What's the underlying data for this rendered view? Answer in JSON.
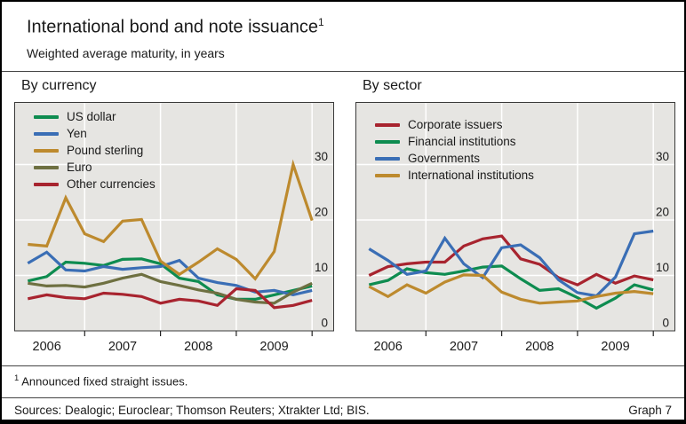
{
  "header": {
    "title": "International bond and note issuance",
    "title_superscript": "1",
    "subtitle": "Weighted average maturity, in years"
  },
  "footer": {
    "footnote_superscript": "1",
    "footnote": "Announced fixed straight issues.",
    "sources": "Sources: Dealogic; Euroclear; Thomson Reuters; Xtrakter Ltd; BIS.",
    "graph_label": "Graph 7"
  },
  "style": {
    "plot_bg": "#e6e5e2",
    "gridline_color": "#ffffff",
    "plot_border_color": "#3a3a3a",
    "text_color": "#1a1a1a"
  },
  "chart_data": [
    {
      "panel": "by-currency",
      "type": "line",
      "title": "By currency",
      "x_unit": "quarterly",
      "x_quarters": [
        "2006 Q1",
        "2006 Q2",
        "2006 Q3",
        "2006 Q4",
        "2007 Q1",
        "2007 Q2",
        "2007 Q3",
        "2007 Q4",
        "2008 Q1",
        "2008 Q2",
        "2008 Q3",
        "2008 Q4",
        "2009 Q1",
        "2009 Q2",
        "2009 Q3",
        "2009 Q4"
      ],
      "year_labels": [
        "2006",
        "2007",
        "2008",
        "2009"
      ],
      "y_ticks": [
        0,
        10,
        20,
        30
      ],
      "ylim": [
        0,
        33
      ],
      "ylabel": "years",
      "grid": true,
      "legend_position": "top-left",
      "series": [
        {
          "name": "US dollar",
          "color": "#0e8c50",
          "values": [
            9.0,
            9.8,
            12.4,
            12.2,
            11.8,
            12.9,
            13.0,
            12.1,
            9.5,
            8.9,
            6.5,
            5.7,
            5.7,
            6.5,
            7.3,
            8.1
          ]
        },
        {
          "name": "Yen",
          "color": "#3a6eb5",
          "values": [
            12.2,
            14.2,
            11.0,
            10.8,
            11.6,
            11.1,
            11.4,
            11.6,
            12.7,
            9.5,
            8.7,
            8.2,
            7.0,
            7.3,
            6.5,
            7.3
          ]
        },
        {
          "name": "Pound sterling",
          "color": "#bd8a2e",
          "values": [
            15.6,
            15.3,
            24.0,
            17.5,
            16.1,
            19.8,
            20.1,
            12.6,
            10.2,
            12.4,
            14.8,
            12.9,
            9.4,
            14.3,
            30.0,
            19.9
          ]
        },
        {
          "name": "Euro",
          "color": "#6e7041",
          "values": [
            8.6,
            8.1,
            8.2,
            7.9,
            8.6,
            9.5,
            10.2,
            8.9,
            8.2,
            7.4,
            6.8,
            5.7,
            5.2,
            5.0,
            7.0,
            8.6
          ]
        },
        {
          "name": "Other currencies",
          "color": "#a8242f",
          "values": [
            5.8,
            6.5,
            6.0,
            5.8,
            6.8,
            6.6,
            6.2,
            5.0,
            5.7,
            5.4,
            4.6,
            7.6,
            7.3,
            4.2,
            4.6,
            5.5
          ]
        }
      ]
    },
    {
      "panel": "by-sector",
      "type": "line",
      "title": "By sector",
      "x_unit": "quarterly",
      "x_quarters": [
        "2006 Q1",
        "2006 Q2",
        "2006 Q3",
        "2006 Q4",
        "2007 Q1",
        "2007 Q2",
        "2007 Q3",
        "2007 Q4",
        "2008 Q1",
        "2008 Q2",
        "2008 Q3",
        "2008 Q4",
        "2009 Q1",
        "2009 Q2",
        "2009 Q3",
        "2009 Q4"
      ],
      "year_labels": [
        "2006",
        "2007",
        "2008",
        "2009"
      ],
      "y_ticks": [
        0,
        10,
        20,
        30
      ],
      "ylim": [
        0,
        33
      ],
      "ylabel": "years",
      "grid": true,
      "legend_position": "top-left",
      "series": [
        {
          "name": "Corporate issuers",
          "color": "#a8242f",
          "values": [
            10.0,
            11.6,
            12.1,
            12.4,
            12.4,
            15.3,
            16.6,
            17.1,
            13.0,
            12.0,
            9.6,
            8.3,
            10.2,
            8.6,
            9.9,
            9.2
          ]
        },
        {
          "name": "Financial institutions",
          "color": "#0e8c50",
          "values": [
            8.3,
            9.1,
            11.2,
            10.5,
            10.2,
            10.8,
            11.5,
            11.7,
            9.4,
            7.3,
            7.6,
            6.0,
            4.1,
            5.9,
            8.3,
            7.4
          ]
        },
        {
          "name": "Governments",
          "color": "#3a6eb5",
          "values": [
            14.8,
            12.7,
            10.2,
            10.8,
            16.7,
            12.1,
            9.6,
            15.0,
            15.5,
            13.2,
            9.2,
            6.9,
            6.3,
            9.7,
            17.5,
            18.0
          ]
        },
        {
          "name": "International institutions",
          "color": "#bd8a2e",
          "values": [
            8.0,
            6.2,
            8.3,
            6.8,
            8.8,
            10.1,
            10.0,
            7.0,
            5.7,
            5.0,
            5.2,
            5.4,
            6.2,
            6.8,
            7.1,
            6.7
          ]
        }
      ]
    }
  ]
}
